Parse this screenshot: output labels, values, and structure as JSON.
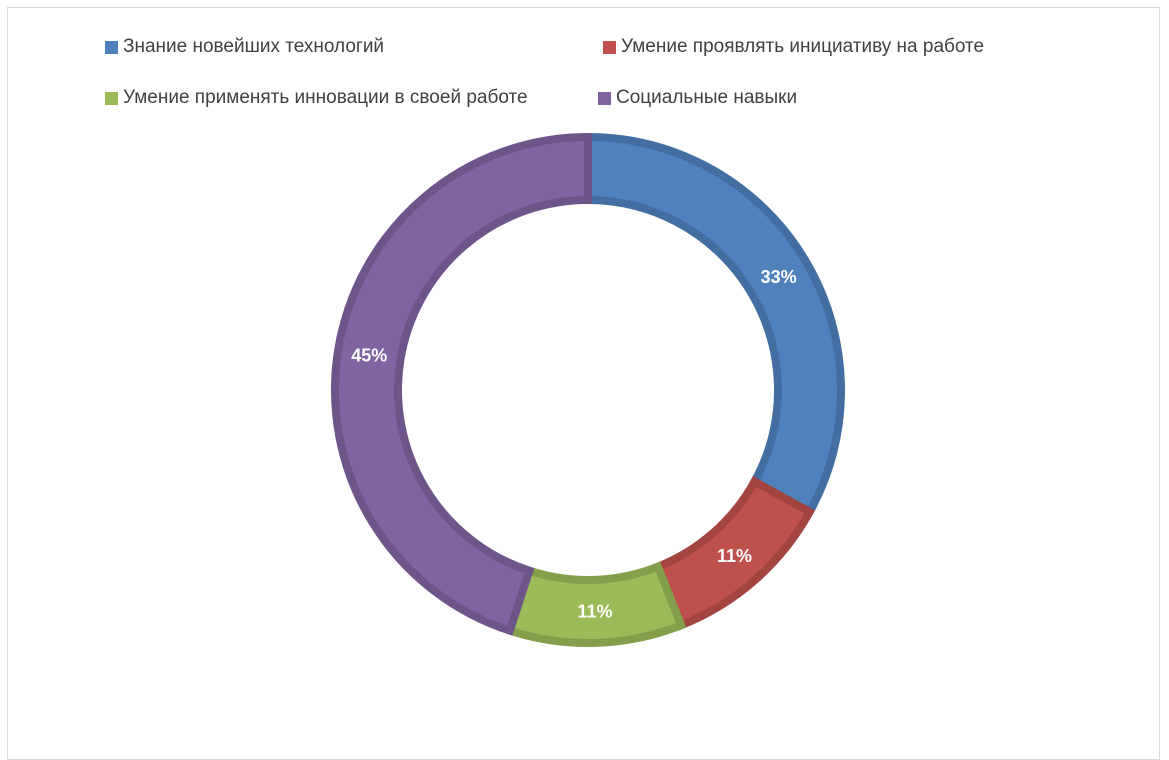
{
  "chart_data": {
    "type": "pie",
    "subtype": "doughnut",
    "title": "",
    "legend_position": "top",
    "categories": [
      "Знание новейших технологий",
      "Умение проявлять инициативу на работе",
      "Умение применять инновации в своей работе",
      "Социальные навыки"
    ],
    "values": [
      33,
      11,
      11,
      45
    ],
    "data_labels": [
      "33%",
      "11%",
      "11%",
      "45%"
    ],
    "colors": [
      "#4f81bd",
      "#c0504d",
      "#9bbb59",
      "#8064a2"
    ]
  }
}
